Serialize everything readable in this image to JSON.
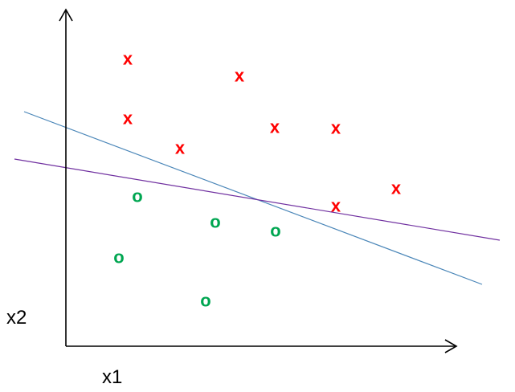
{
  "labels": {
    "x_axis": "x1",
    "y_axis": "x2"
  },
  "colors": {
    "class_x": "#ff0000",
    "class_o": "#00a651",
    "line_blue": "#4a86b8",
    "line_purple": "#7030a0",
    "axes": "#000000"
  },
  "chart_data": {
    "type": "scatter",
    "xlabel": "x1",
    "ylabel": "x2",
    "grid": false,
    "series": [
      {
        "marker": "x",
        "points": [
          [
            159,
            73
          ],
          [
            298,
            94
          ],
          [
            159,
            147
          ],
          [
            342,
            158
          ],
          [
            418,
            159
          ],
          [
            224,
            184
          ],
          [
            493,
            234
          ],
          [
            418,
            256
          ]
        ]
      },
      {
        "marker": "o",
        "points": [
          [
            171,
            244
          ],
          [
            268,
            276
          ],
          [
            343,
            287
          ],
          [
            148,
            320
          ],
          [
            256,
            374
          ]
        ]
      }
    ],
    "lines": [
      {
        "color": "blue",
        "from": [
          30,
          139
        ],
        "to": [
          600,
          354
        ]
      },
      {
        "color": "purple",
        "from": [
          18,
          198
        ],
        "to": [
          622,
          299
        ]
      }
    ]
  }
}
